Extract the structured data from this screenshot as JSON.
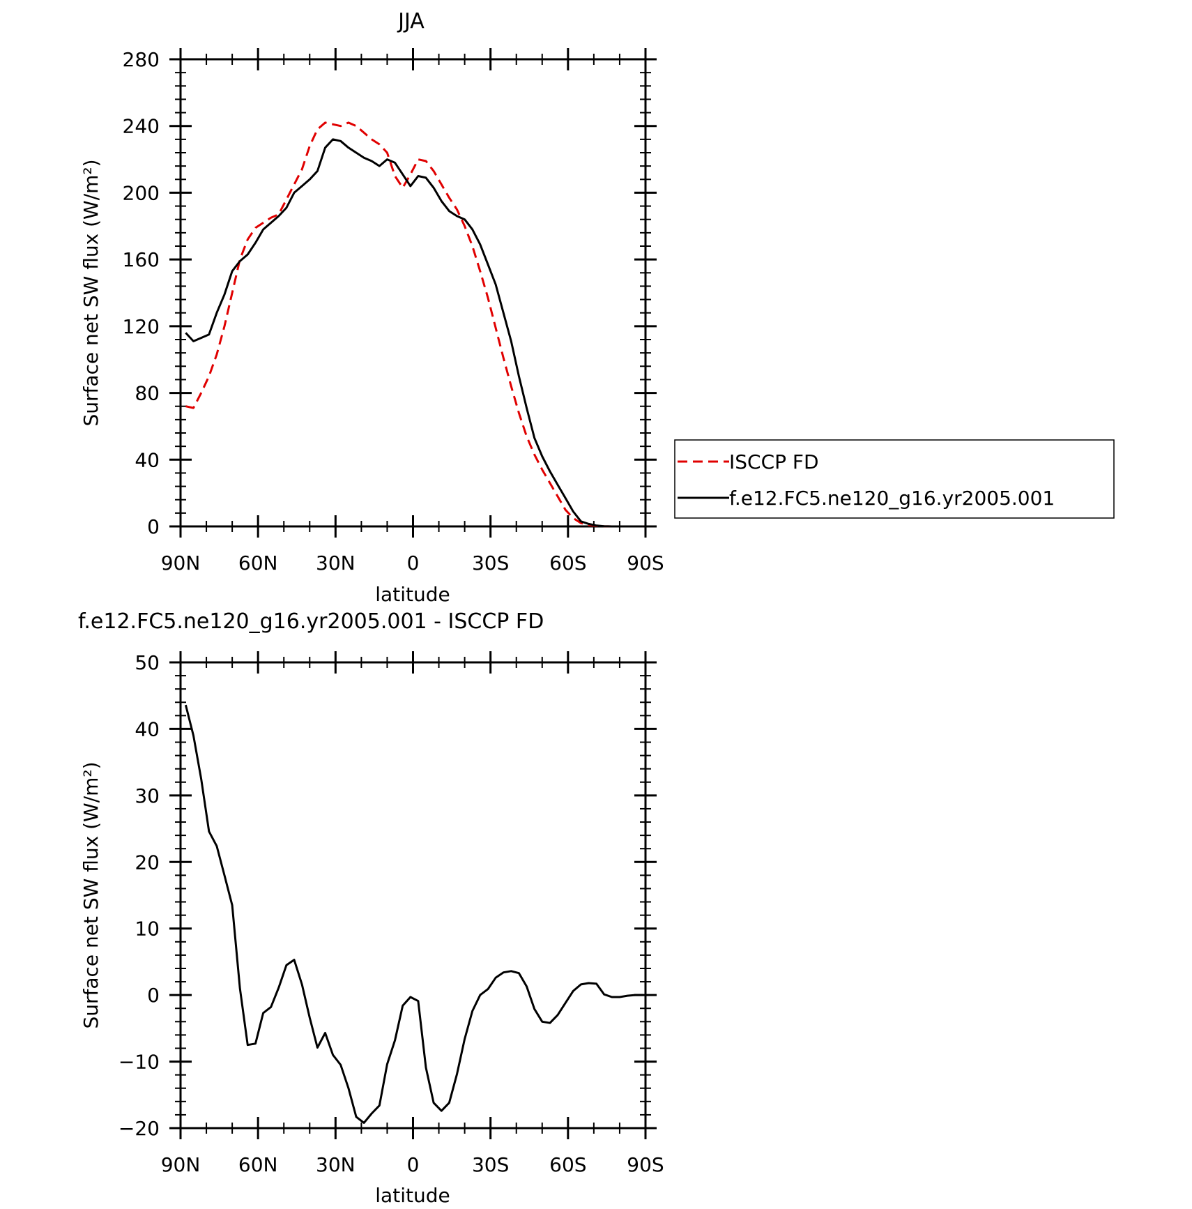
{
  "chart_data": [
    {
      "type": "line",
      "title": "JJA",
      "xlabel": "latitude",
      "ylabel": "Surface net SW flux (W/m²)",
      "xlim": [
        90,
        -90
      ],
      "ylim": [
        0,
        280
      ],
      "xticks": [
        {
          "value": 90,
          "label": "90N"
        },
        {
          "value": 60,
          "label": "60N"
        },
        {
          "value": 30,
          "label": "30N"
        },
        {
          "value": 0,
          "label": "0"
        },
        {
          "value": -30,
          "label": "30S"
        },
        {
          "value": -60,
          "label": "60S"
        },
        {
          "value": -90,
          "label": "90S"
        }
      ],
      "yticks": [
        0,
        40,
        80,
        120,
        160,
        200,
        240,
        280
      ],
      "legend": {
        "placement": "right"
      },
      "series": [
        {
          "name": "ISCCP FD",
          "color": "#e00000",
          "dash": "dashed",
          "x": [
            88,
            85,
            82,
            79,
            76,
            73,
            70,
            67,
            64,
            61,
            58,
            55,
            52,
            49,
            46,
            43,
            40,
            37,
            34,
            31,
            28,
            25,
            22,
            19,
            16,
            13,
            10,
            7,
            4,
            1,
            -2,
            -5,
            -8,
            -11,
            -14,
            -17,
            -20,
            -23,
            -26,
            -29,
            -32,
            -35,
            -38,
            -41,
            -44,
            -47,
            -50,
            -53,
            -56,
            -59,
            -62,
            -65,
            -68,
            -71,
            -74,
            -77,
            -80,
            -83,
            -86,
            -89
          ],
          "y": [
            72,
            71,
            80,
            90,
            103,
            120,
            140,
            160,
            172,
            179,
            182,
            185,
            187,
            196,
            205,
            214,
            228,
            238,
            242,
            241,
            240,
            242,
            240,
            236,
            232,
            229,
            224,
            210,
            203,
            211,
            220,
            219,
            213,
            205,
            197,
            190,
            180,
            168,
            153,
            137,
            119,
            101,
            84,
            68,
            54,
            43,
            34,
            26,
            18,
            10,
            5,
            2,
            0.8,
            0.3,
            0.1,
            0,
            0,
            0,
            0,
            0
          ]
        },
        {
          "name": "f.e12.FC5.ne120_g16.yr2005.001",
          "color": "#000000",
          "dash": "solid",
          "x": [
            88,
            85,
            82,
            79,
            76,
            73,
            70,
            67,
            64,
            61,
            58,
            55,
            52,
            49,
            46,
            43,
            40,
            37,
            34,
            31,
            28,
            25,
            22,
            19,
            16,
            13,
            10,
            7,
            4,
            1,
            -2,
            -5,
            -8,
            -11,
            -14,
            -17,
            -20,
            -23,
            -26,
            -29,
            -32,
            -35,
            -38,
            -41,
            -44,
            -47,
            -50,
            -53,
            -56,
            -59,
            -62,
            -65,
            -68,
            -71,
            -74,
            -77,
            -80,
            -83,
            -86,
            -89
          ],
          "y": [
            116,
            111,
            113,
            115,
            128,
            139,
            153,
            159,
            163,
            170,
            178,
            182,
            186,
            191,
            200,
            204,
            208,
            213,
            227,
            232,
            231,
            227,
            224,
            221,
            219,
            216,
            220,
            218,
            211,
            204,
            210,
            209,
            203,
            195,
            189,
            186,
            184,
            178,
            169,
            157,
            145,
            128,
            111,
            90,
            71,
            53,
            42,
            33,
            25,
            17,
            9,
            3,
            1.5,
            0.5,
            0.1,
            0,
            0,
            0,
            0,
            0
          ]
        }
      ]
    },
    {
      "type": "line",
      "title": "f.e12.FC5.ne120_g16.yr2005.001 - ISCCP FD",
      "xlabel": "latitude",
      "ylabel": "Surface net SW flux (W/m²)",
      "xlim": [
        90,
        -90
      ],
      "ylim": [
        -20,
        50
      ],
      "xticks": [
        {
          "value": 90,
          "label": "90N"
        },
        {
          "value": 60,
          "label": "60N"
        },
        {
          "value": 30,
          "label": "30N"
        },
        {
          "value": 0,
          "label": "0"
        },
        {
          "value": -30,
          "label": "30S"
        },
        {
          "value": -60,
          "label": "60S"
        },
        {
          "value": -90,
          "label": "90S"
        }
      ],
      "yticks": [
        -20,
        -10,
        0,
        10,
        20,
        30,
        40,
        50
      ],
      "series": [
        {
          "name": "",
          "color": "#000000",
          "dash": "solid",
          "x": [
            88,
            85,
            82,
            79,
            76,
            73,
            70,
            67,
            64,
            61,
            58,
            55,
            52,
            49,
            46,
            43,
            40,
            37,
            34,
            31,
            28,
            25,
            22,
            19,
            16,
            13,
            10,
            7,
            4,
            1,
            -2,
            -5,
            -8,
            -11,
            -14,
            -17,
            -20,
            -23,
            -26,
            -29,
            -32,
            -35,
            -38,
            -41,
            -44,
            -47,
            -50,
            -53,
            -56,
            -59,
            -62,
            -65,
            -68,
            -71,
            -74,
            -77,
            -80,
            -83,
            -86,
            -89
          ],
          "y": [
            43.6,
            39,
            32.5,
            24.6,
            22.4,
            18,
            13.5,
            1,
            -7.5,
            -7.3,
            -2.7,
            -1.8,
            1.1,
            4.5,
            5.3,
            1.6,
            -3.4,
            -7.9,
            -5.7,
            -9,
            -10.5,
            -14,
            -18.3,
            -19.2,
            -17.8,
            -16.6,
            -10.4,
            -6.8,
            -1.6,
            -0.3,
            -0.9,
            -10.9,
            -16.2,
            -17.4,
            -16.2,
            -11.9,
            -6.6,
            -2.4,
            0,
            0.9,
            2.6,
            3.4,
            3.6,
            3.3,
            1.3,
            -2.1,
            -4,
            -4.2,
            -3,
            -1.2,
            0.6,
            1.6,
            1.8,
            1.7,
            0.1,
            -0.3,
            -0.3,
            -0.1,
            0,
            0
          ]
        }
      ]
    }
  ]
}
